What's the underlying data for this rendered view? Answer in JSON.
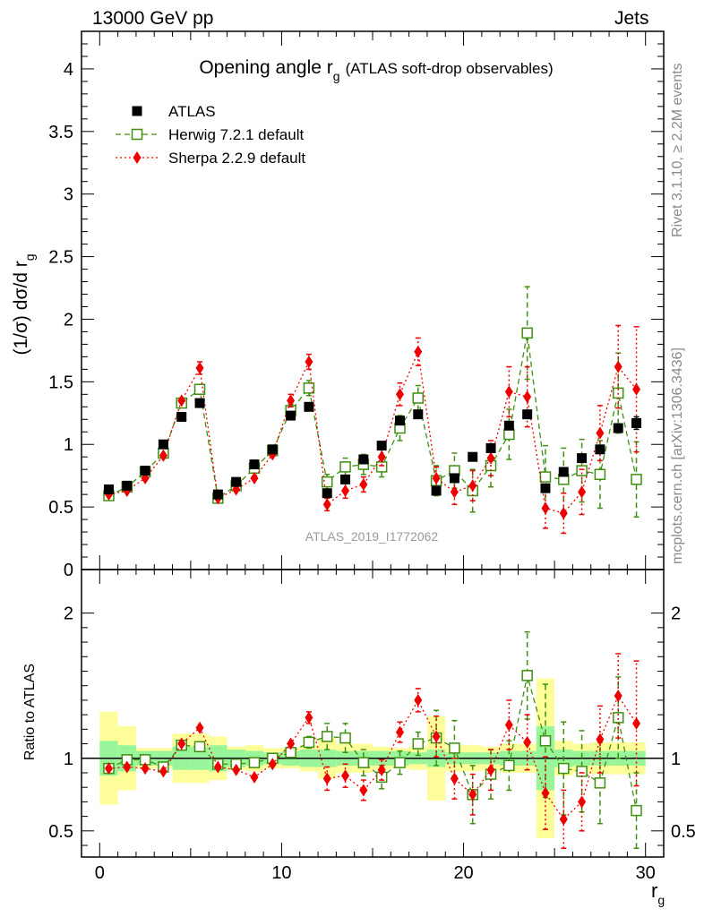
{
  "header": {
    "left": "13000 GeV pp",
    "right": "Jets"
  },
  "side_labels": {
    "rivet": "Rivet 3.1.10, ≥ 2.2M events",
    "mcplots": "mcplots.cern.ch [arXiv:1306.3436]"
  },
  "analysis_id": "ATLAS_2019_I1772062",
  "colors": {
    "atlas": "#000000",
    "herwig": "#3f8f10",
    "sherpa": "#ee0000",
    "band_yellow": "#fdfd99",
    "band_green": "#99f599"
  },
  "chart_data": [
    {
      "type": "scatter",
      "title": "Opening angle r",
      "title_sub": "g",
      "title_suffix": "(ATLAS soft-drop observables)",
      "ylabel": "(1/σ) dσ/d r",
      "ylabel_sub": "g",
      "xlim": [
        -1,
        31
      ],
      "ylim": [
        0,
        4.3
      ],
      "yticks": [
        "0",
        "0.5",
        "1",
        "1.5",
        "2",
        "2.5",
        "3",
        "3.5",
        "4"
      ],
      "legend_position": "top-left",
      "x": [
        0.5,
        1.5,
        2.5,
        3.5,
        4.5,
        5.5,
        6.5,
        7.5,
        8.5,
        9.5,
        10.5,
        11.5,
        12.5,
        13.5,
        14.5,
        15.5,
        16.5,
        17.5,
        18.5,
        19.5,
        20.5,
        21.5,
        22.5,
        23.5,
        24.5,
        25.5,
        26.5,
        27.5,
        28.5,
        29.5
      ],
      "series": [
        {
          "name": "ATLAS",
          "marker": "square-filled",
          "values": [
            0.64,
            0.67,
            0.79,
            1.0,
            1.22,
            1.33,
            0.6,
            0.7,
            0.84,
            0.96,
            1.23,
            1.3,
            0.61,
            0.72,
            0.88,
            0.99,
            1.19,
            1.24,
            0.63,
            0.73,
            0.9,
            0.97,
            1.15,
            1.24,
            0.65,
            0.78,
            0.89,
            0.96,
            1.13,
            1.17
          ],
          "errors": [
            0.02,
            0.02,
            0.02,
            0.02,
            0.03,
            0.03,
            0.02,
            0.02,
            0.02,
            0.02,
            0.03,
            0.03,
            0.02,
            0.02,
            0.02,
            0.03,
            0.03,
            0.03,
            0.02,
            0.03,
            0.03,
            0.03,
            0.04,
            0.04,
            0.03,
            0.03,
            0.03,
            0.04,
            0.04,
            0.05
          ]
        },
        {
          "name": "Herwig 7.2.1 default",
          "marker": "square-open",
          "line": "dashed",
          "values": [
            0.59,
            0.66,
            0.78,
            0.93,
            1.33,
            1.44,
            0.57,
            0.67,
            0.81,
            0.95,
            1.27,
            1.45,
            0.7,
            0.82,
            0.84,
            0.82,
            1.13,
            1.37,
            0.71,
            0.79,
            0.63,
            0.83,
            1.08,
            1.89,
            0.74,
            0.72,
            0.79,
            0.76,
            1.41,
            0.72
          ],
          "errors": [
            0.03,
            0.03,
            0.03,
            0.03,
            0.04,
            0.04,
            0.03,
            0.03,
            0.03,
            0.04,
            0.05,
            0.06,
            0.06,
            0.07,
            0.08,
            0.08,
            0.1,
            0.1,
            0.12,
            0.14,
            0.17,
            0.17,
            0.2,
            0.37,
            0.25,
            0.25,
            0.25,
            0.27,
            0.32,
            0.3
          ]
        },
        {
          "name": "Sherpa 2.2.9 default",
          "marker": "diamond-filled",
          "line": "dotted",
          "values": [
            0.6,
            0.63,
            0.73,
            0.91,
            1.35,
            1.61,
            0.57,
            0.64,
            0.73,
            0.92,
            1.35,
            1.66,
            0.52,
            0.63,
            0.68,
            0.9,
            1.4,
            1.74,
            0.73,
            0.62,
            0.67,
            0.89,
            1.42,
            1.38,
            0.49,
            0.45,
            0.62,
            1.09,
            1.62,
            1.44
          ],
          "errors": [
            0.03,
            0.03,
            0.03,
            0.03,
            0.04,
            0.05,
            0.03,
            0.03,
            0.03,
            0.04,
            0.05,
            0.06,
            0.05,
            0.06,
            0.06,
            0.07,
            0.09,
            0.11,
            0.09,
            0.1,
            0.12,
            0.14,
            0.2,
            0.24,
            0.16,
            0.16,
            0.18,
            0.22,
            0.33,
            0.5
          ]
        }
      ]
    },
    {
      "type": "scatter",
      "title": "",
      "ylabel": "Ratio to ATLAS",
      "xlabel": "r",
      "xlabel_sub": "g",
      "xlim": [
        -1,
        31
      ],
      "ylim": [
        0.32,
        2.3
      ],
      "yticks": [
        "0.5",
        "1",
        "2"
      ],
      "xticks": [
        "0",
        "10",
        "20",
        "30"
      ],
      "x": [
        0.5,
        1.5,
        2.5,
        3.5,
        4.5,
        5.5,
        6.5,
        7.5,
        8.5,
        9.5,
        10.5,
        11.5,
        12.5,
        13.5,
        14.5,
        15.5,
        16.5,
        17.5,
        18.5,
        19.5,
        20.5,
        21.5,
        22.5,
        23.5,
        24.5,
        25.5,
        26.5,
        27.5,
        28.5,
        29.5
      ],
      "band_green_halfwidth": [
        0.12,
        0.09,
        0.05,
        0.05,
        0.08,
        0.08,
        0.09,
        0.06,
        0.05,
        0.04,
        0.05,
        0.06,
        0.06,
        0.05,
        0.05,
        0.05,
        0.05,
        0.04,
        0.06,
        0.04,
        0.04,
        0.04,
        0.05,
        0.05,
        0.22,
        0.06,
        0.05,
        0.05,
        0.05,
        0.05
      ],
      "band_yellow_halfwidth": [
        0.32,
        0.22,
        0.07,
        0.07,
        0.17,
        0.17,
        0.15,
        0.08,
        0.09,
        0.07,
        0.07,
        0.09,
        0.14,
        0.1,
        0.1,
        0.08,
        0.07,
        0.08,
        0.29,
        0.09,
        0.09,
        0.08,
        0.1,
        0.1,
        0.55,
        0.12,
        0.1,
        0.11,
        0.11,
        0.11
      ],
      "series": [
        {
          "name": "Herwig 7.2.1 default",
          "values": [
            0.93,
            0.99,
            0.99,
            0.94,
            1.09,
            1.08,
            0.96,
            0.96,
            0.97,
            1.0,
            1.04,
            1.11,
            1.15,
            1.14,
            0.97,
            0.87,
            0.97,
            1.1,
            1.14,
            1.07,
            0.75,
            0.89,
            0.95,
            1.57,
            1.12,
            0.93,
            0.91,
            0.83,
            1.28,
            0.64
          ],
          "errors": [
            0.02,
            0.02,
            0.02,
            0.02,
            0.02,
            0.02,
            0.02,
            0.02,
            0.02,
            0.03,
            0.03,
            0.04,
            0.09,
            0.1,
            0.09,
            0.08,
            0.08,
            0.08,
            0.19,
            0.19,
            0.2,
            0.17,
            0.17,
            0.3,
            0.39,
            0.32,
            0.28,
            0.28,
            0.28,
            0.26
          ]
        },
        {
          "name": "Sherpa 2.2.9 default",
          "values": [
            0.93,
            0.94,
            0.93,
            0.91,
            1.1,
            1.21,
            0.94,
            0.92,
            0.87,
            0.96,
            1.1,
            1.28,
            0.86,
            0.88,
            0.78,
            0.92,
            1.18,
            1.4,
            1.15,
            0.86,
            0.75,
            0.92,
            1.23,
            1.11,
            0.76,
            0.58,
            0.7,
            1.13,
            1.43,
            1.24
          ],
          "errors": [
            0.02,
            0.02,
            0.02,
            0.02,
            0.02,
            0.03,
            0.02,
            0.02,
            0.02,
            0.03,
            0.03,
            0.04,
            0.08,
            0.08,
            0.07,
            0.07,
            0.07,
            0.08,
            0.14,
            0.14,
            0.14,
            0.14,
            0.17,
            0.19,
            0.25,
            0.2,
            0.2,
            0.23,
            0.29,
            0.43
          ]
        }
      ]
    }
  ]
}
